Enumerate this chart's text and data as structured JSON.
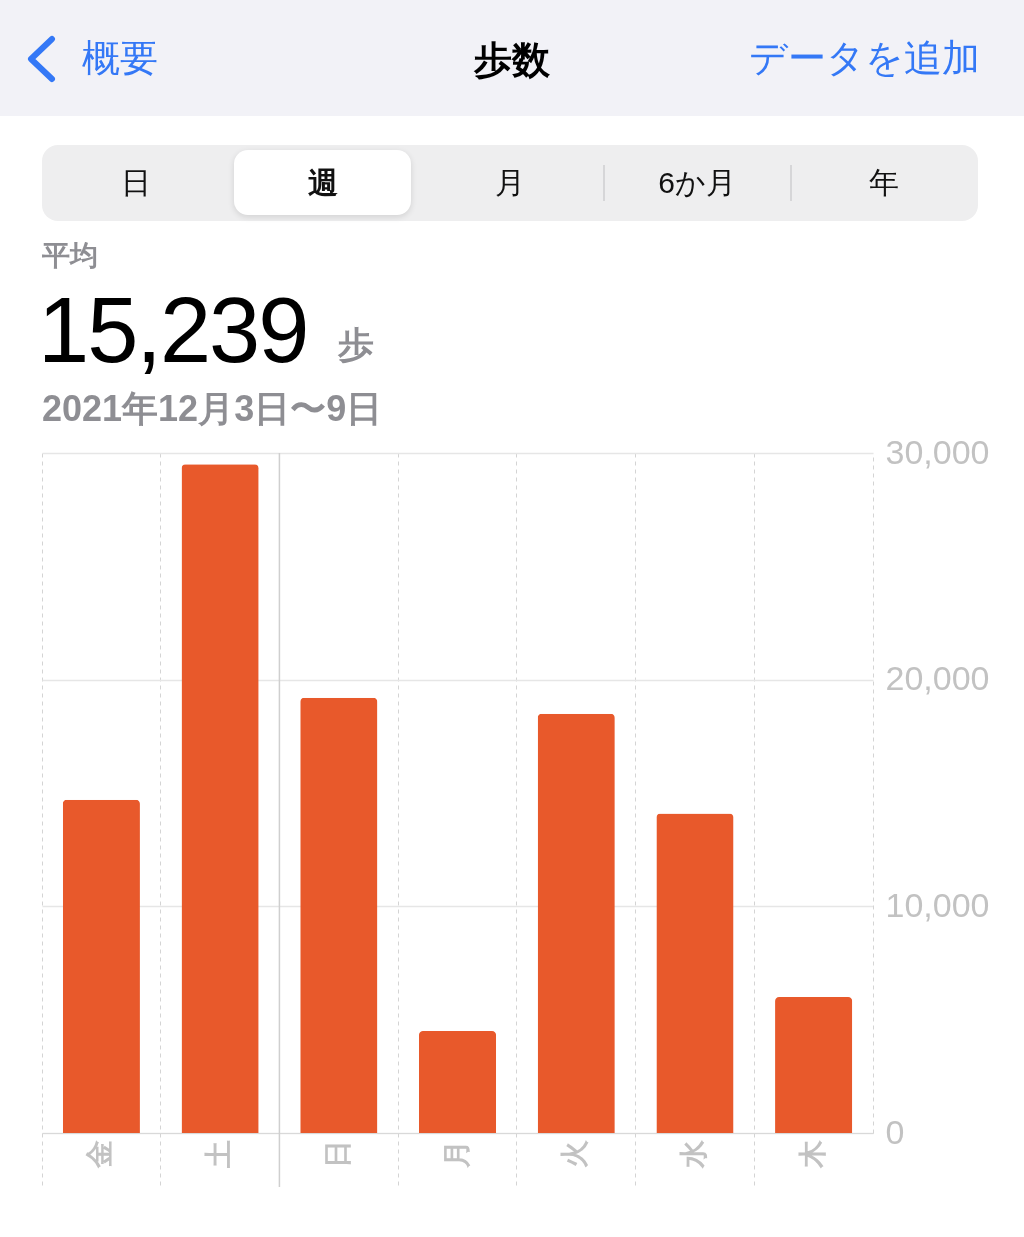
{
  "chart_data": {
    "type": "bar",
    "title": "歩数",
    "subtitle": "2021年12月3日〜9日",
    "annotations": [
      "概要",
      "データを追加",
      "日",
      "週",
      "月",
      "6か月",
      "年",
      "平均",
      "15,239",
      "歩"
    ],
    "categories": [
      "金",
      "土",
      "日",
      "月",
      "火",
      "水",
      "木"
    ],
    "values": [
      14700,
      29500,
      19200,
      4500,
      18500,
      14100,
      6000
    ],
    "color": "#e8592b",
    "ylim": [
      0,
      30000
    ],
    "yticks": [
      0,
      {
        "value": 10000,
        "label": "10,000"
      },
      {
        "value": 20000,
        "label": "20,000"
      },
      {
        "value": 30000,
        "label": "30,000"
      }
    ],
    "grid": true,
    "ref_lines": [
      {
        "axis": "x",
        "value": "日",
        "line_style": "solid"
      }
    ]
  }
}
